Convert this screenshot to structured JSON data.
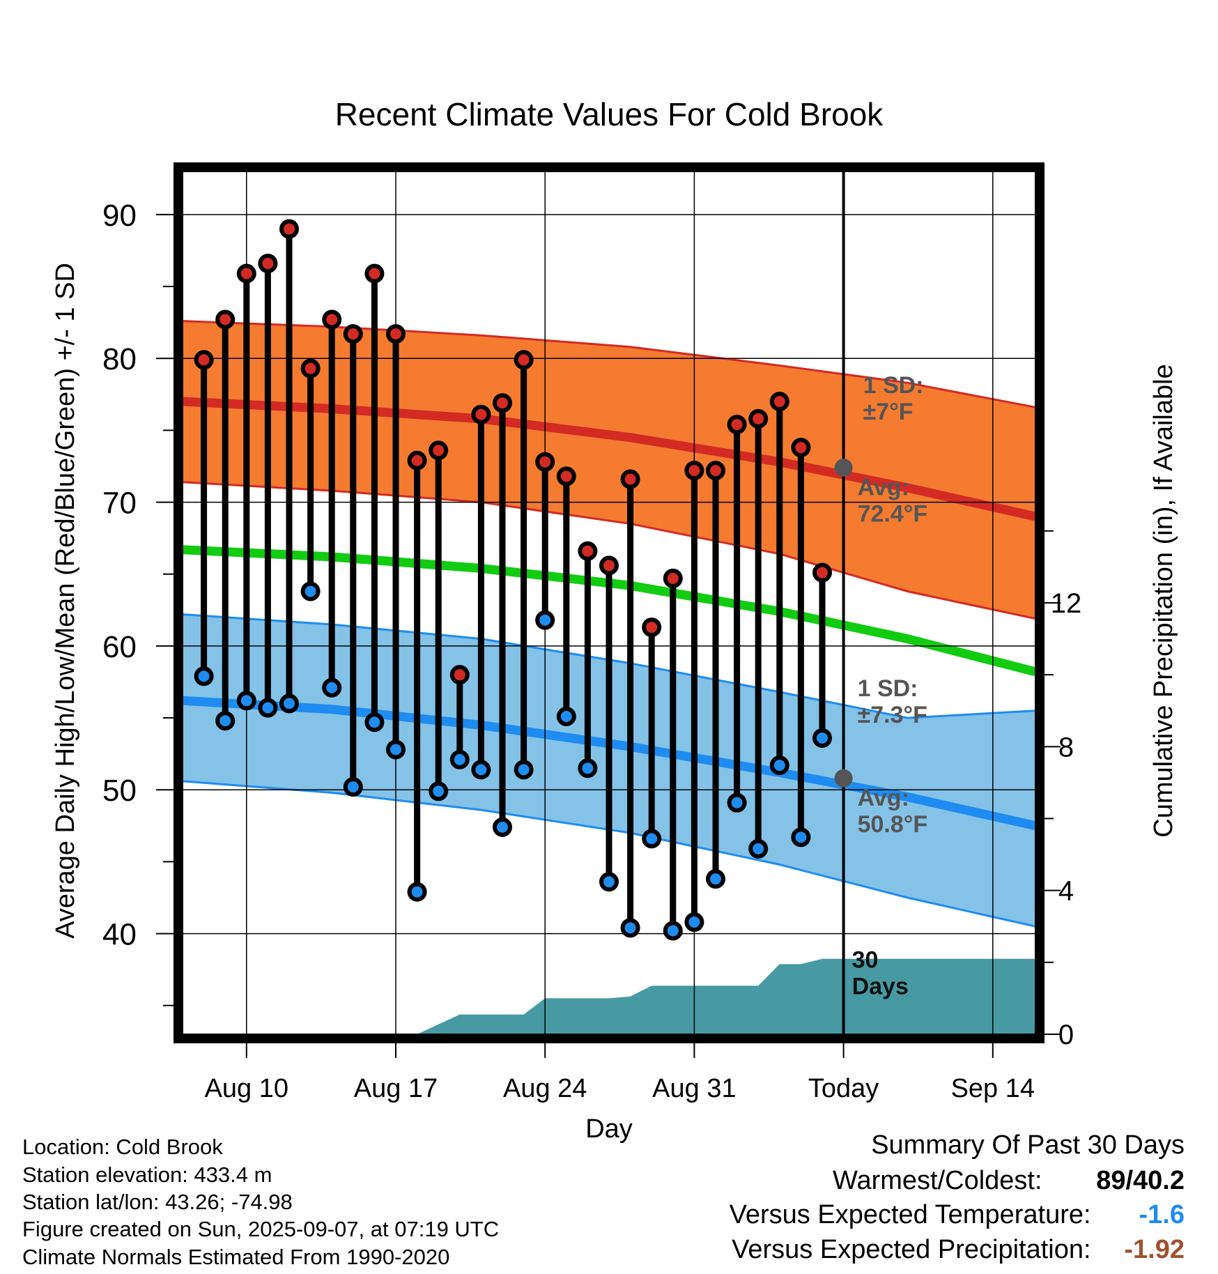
{
  "colors": {
    "high_band": "#f47b30",
    "high_line": "#d42a24",
    "mean_line": "#11cc11",
    "low_band": "#84c2e8",
    "low_line": "#1e8cf0",
    "precip": "#479aa3",
    "today_marker": "#555555",
    "high_dot": "#d42a24",
    "low_dot": "#1e8cf0",
    "warm_value": "#000000",
    "temp_departure": "#1e8cf0",
    "precip_departure": "#a0522d"
  },
  "chart_data": {
    "type": "line",
    "title": "Recent Climate Values For Cold Brook",
    "xlabel": "Day",
    "ylabel": "Average Daily High/Low/Mean (Red/Blue/Green) +/- 1 SD",
    "y2label": "Cumulative Precipitation (in), If Available",
    "ylim": [
      33,
      93
    ],
    "y2lim": [
      0,
      24
    ],
    "yticks": [
      "40",
      "50",
      "60",
      "70",
      "80",
      "90"
    ],
    "y2ticks": [
      "0",
      "4",
      "8",
      "12"
    ],
    "xlim": [
      "2025-08-07T12:00",
      "2025-09-16T12:00"
    ],
    "xticks": [
      {
        "date": "2025-08-10",
        "label": "Aug 10"
      },
      {
        "date": "2025-08-17",
        "label": "Aug 17"
      },
      {
        "date": "2025-08-24",
        "label": "Aug 24"
      },
      {
        "date": "2025-08-31",
        "label": "Aug 31"
      },
      {
        "date": "2025-09-07",
        "label": "Today"
      },
      {
        "date": "2025-09-14",
        "label": "Sep 14"
      }
    ],
    "grid": true,
    "today": "2025-09-07",
    "normals_dates": [
      "2025-08-07T12:00",
      "2025-08-14",
      "2025-08-21",
      "2025-08-28",
      "2025-09-04",
      "2025-09-10",
      "2025-09-16T12:00"
    ],
    "normal_high": [
      77.0,
      76.5,
      75.8,
      74.5,
      72.8,
      71.0,
      69.0
    ],
    "normal_high_upper": [
      82.6,
      82.2,
      81.6,
      80.8,
      79.5,
      78.3,
      76.6
    ],
    "normal_high_lower": [
      71.4,
      70.8,
      70.0,
      68.5,
      66.4,
      63.8,
      61.9
    ],
    "normal_mean": [
      66.7,
      66.2,
      65.4,
      64.2,
      62.4,
      60.5,
      58.2
    ],
    "normal_low": [
      56.2,
      55.6,
      54.5,
      53.0,
      51.2,
      49.5,
      47.5
    ],
    "normal_low_upper": [
      62.2,
      61.5,
      60.5,
      58.8,
      56.8,
      55.0,
      55.5
    ],
    "normal_low_lower": [
      50.6,
      49.8,
      48.6,
      47.0,
      44.8,
      42.5,
      40.5
    ],
    "annotations": {
      "high_sd": "1 SD:\n±7°F",
      "high_avg": "Avg:\n72.4°F",
      "low_sd": "1 SD:\n±7.3°F",
      "low_avg": "Avg:\n50.8°F",
      "precip_window": "30\nDays"
    },
    "today_high_avg": 72.4,
    "today_low_avg": 50.8,
    "days": [
      "2025-08-08",
      "2025-08-09",
      "2025-08-10",
      "2025-08-11",
      "2025-08-12",
      "2025-08-13",
      "2025-08-14",
      "2025-08-15",
      "2025-08-16",
      "2025-08-17",
      "2025-08-18",
      "2025-08-19",
      "2025-08-20",
      "2025-08-21",
      "2025-08-22",
      "2025-08-23",
      "2025-08-24",
      "2025-08-25",
      "2025-08-26",
      "2025-08-27",
      "2025-08-28",
      "2025-08-29",
      "2025-08-30",
      "2025-08-31",
      "2025-09-01",
      "2025-09-02",
      "2025-09-03",
      "2025-09-04",
      "2025-09-05",
      "2025-09-06"
    ],
    "series": [
      {
        "name": "High",
        "values": [
          79.9,
          82.7,
          85.9,
          86.6,
          89.0,
          79.3,
          82.7,
          81.7,
          85.9,
          81.7,
          72.9,
          73.6,
          58.0,
          76.1,
          76.9,
          79.9,
          72.8,
          71.8,
          66.6,
          65.6,
          71.6,
          61.3,
          64.7,
          72.2,
          72.2,
          75.4,
          75.8,
          77.0,
          73.8,
          65.1
        ]
      },
      {
        "name": "Low",
        "values": [
          57.9,
          54.8,
          56.2,
          55.7,
          56.0,
          63.8,
          57.1,
          50.2,
          54.7,
          52.8,
          42.9,
          49.9,
          52.1,
          51.4,
          47.4,
          51.4,
          61.8,
          55.1,
          51.5,
          43.6,
          40.4,
          46.6,
          40.2,
          40.8,
          43.8,
          49.1,
          45.9,
          51.7,
          46.7,
          53.6
        ]
      }
    ],
    "precip_dates": [
      "2025-08-18",
      "2025-08-20",
      "2025-08-23",
      "2025-08-24",
      "2025-08-27",
      "2025-08-28",
      "2025-08-29",
      "2025-09-03",
      "2025-09-04",
      "2025-09-05",
      "2025-09-06",
      "2025-09-16T12:00"
    ],
    "precip_cumulative": [
      0.0,
      0.55,
      0.55,
      1.0,
      1.0,
      1.05,
      1.35,
      1.35,
      1.95,
      1.95,
      2.1,
      2.1
    ]
  },
  "footer": {
    "location": "Location: Cold Brook",
    "elevation": "Station elevation: 433.4 m",
    "latlon": "Station lat/lon: 43.26; -74.98",
    "created": "Figure created on Sun, 2025-09-07, at 07:19 UTC",
    "normals": "Climate Normals Estimated From 1990-2020"
  },
  "summary": {
    "title": "Summary Of Past 30 Days",
    "warmest_label": "Warmest/Coldest:",
    "warmest_value": "89/40.2",
    "temp_label": "Versus Expected Temperature:",
    "temp_value": "-1.6",
    "precip_label": "Versus Expected Precipitation:",
    "precip_value": "-1.92"
  }
}
